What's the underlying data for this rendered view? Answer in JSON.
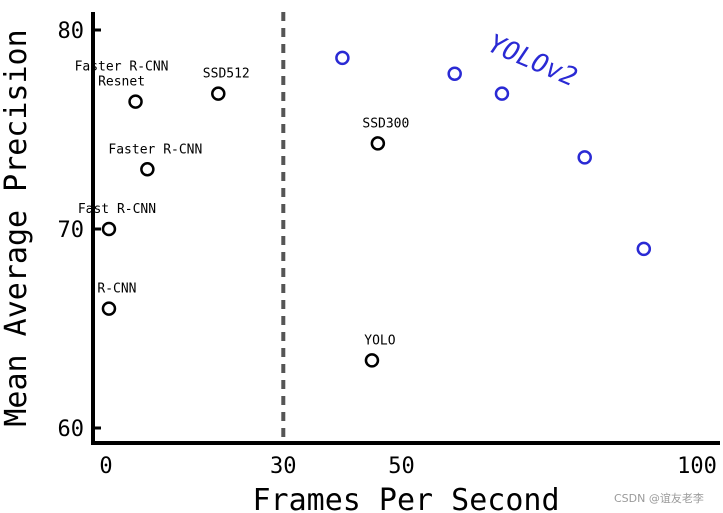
{
  "chart_data": {
    "type": "scatter",
    "xlabel": "Frames Per Second",
    "ylabel": "Mean Average Precision",
    "x_ticks": [
      0,
      30,
      50,
      100
    ],
    "y_ticks": [
      60,
      70,
      80
    ],
    "xlim": [
      0,
      100
    ],
    "ylim": [
      60,
      81
    ],
    "divider_x": 30,
    "colors": {
      "other": "#000000",
      "yolov2": "#2a2ad4"
    },
    "series": [
      {
        "id": "other",
        "points": [
          {
            "label": [
              "R-CNN"
            ],
            "x": 0.5,
            "y": 66
          },
          {
            "label": [
              "Fast R-CNN"
            ],
            "x": 0.5,
            "y": 70
          },
          {
            "label": [
              "Faster R-CNN"
            ],
            "x": 7,
            "y": 73
          },
          {
            "label": [
              "Faster R-CNN",
              "Resnet"
            ],
            "x": 5,
            "y": 76.4
          },
          {
            "label": [
              "SSD512"
            ],
            "x": 19,
            "y": 76.8
          },
          {
            "label": [
              "SSD300"
            ],
            "x": 46,
            "y": 74.3
          },
          {
            "label": [
              "YOLO"
            ],
            "x": 45,
            "y": 63.4
          }
        ]
      },
      {
        "id": "yolov2",
        "name": "YOLOv2",
        "points": [
          {
            "x": 40,
            "y": 78.6
          },
          {
            "x": 59,
            "y": 77.8
          },
          {
            "x": 67,
            "y": 76.8
          },
          {
            "x": 81,
            "y": 73.6
          },
          {
            "x": 91,
            "y": 69
          }
        ]
      }
    ]
  },
  "watermark": "CSDN @谊友老李"
}
